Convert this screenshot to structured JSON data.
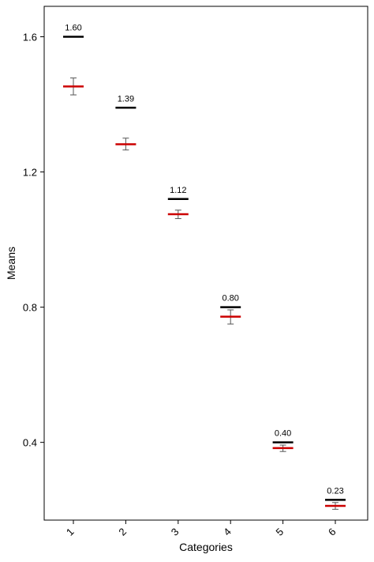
{
  "chart_data": {
    "type": "scatter",
    "title": "",
    "xlabel": "Categories",
    "ylabel": "Means",
    "categories": [
      "1",
      "2",
      "3",
      "4",
      "5",
      "6"
    ],
    "y_ticks": [
      "0.4",
      "0.8",
      "1.2",
      "1.6"
    ],
    "ylim": [
      0.17,
      1.69
    ],
    "grid": false,
    "legend": "none",
    "series": [
      {
        "values": [
          1.6,
          1.39,
          1.12,
          0.8,
          0.4,
          0.23
        ],
        "data_labels": [
          "1.60",
          "1.39",
          "1.12",
          "0.80",
          "0.40",
          "0.23"
        ],
        "color": "#000000"
      },
      {
        "values": [
          1.453,
          1.282,
          1.075,
          0.772,
          0.383,
          0.212
        ],
        "error_low": [
          1.428,
          1.265,
          1.062,
          0.75,
          0.373,
          0.202
        ],
        "error_high": [
          1.478,
          1.3,
          1.087,
          0.792,
          0.392,
          0.222
        ],
        "color": "#cc0000"
      }
    ]
  }
}
